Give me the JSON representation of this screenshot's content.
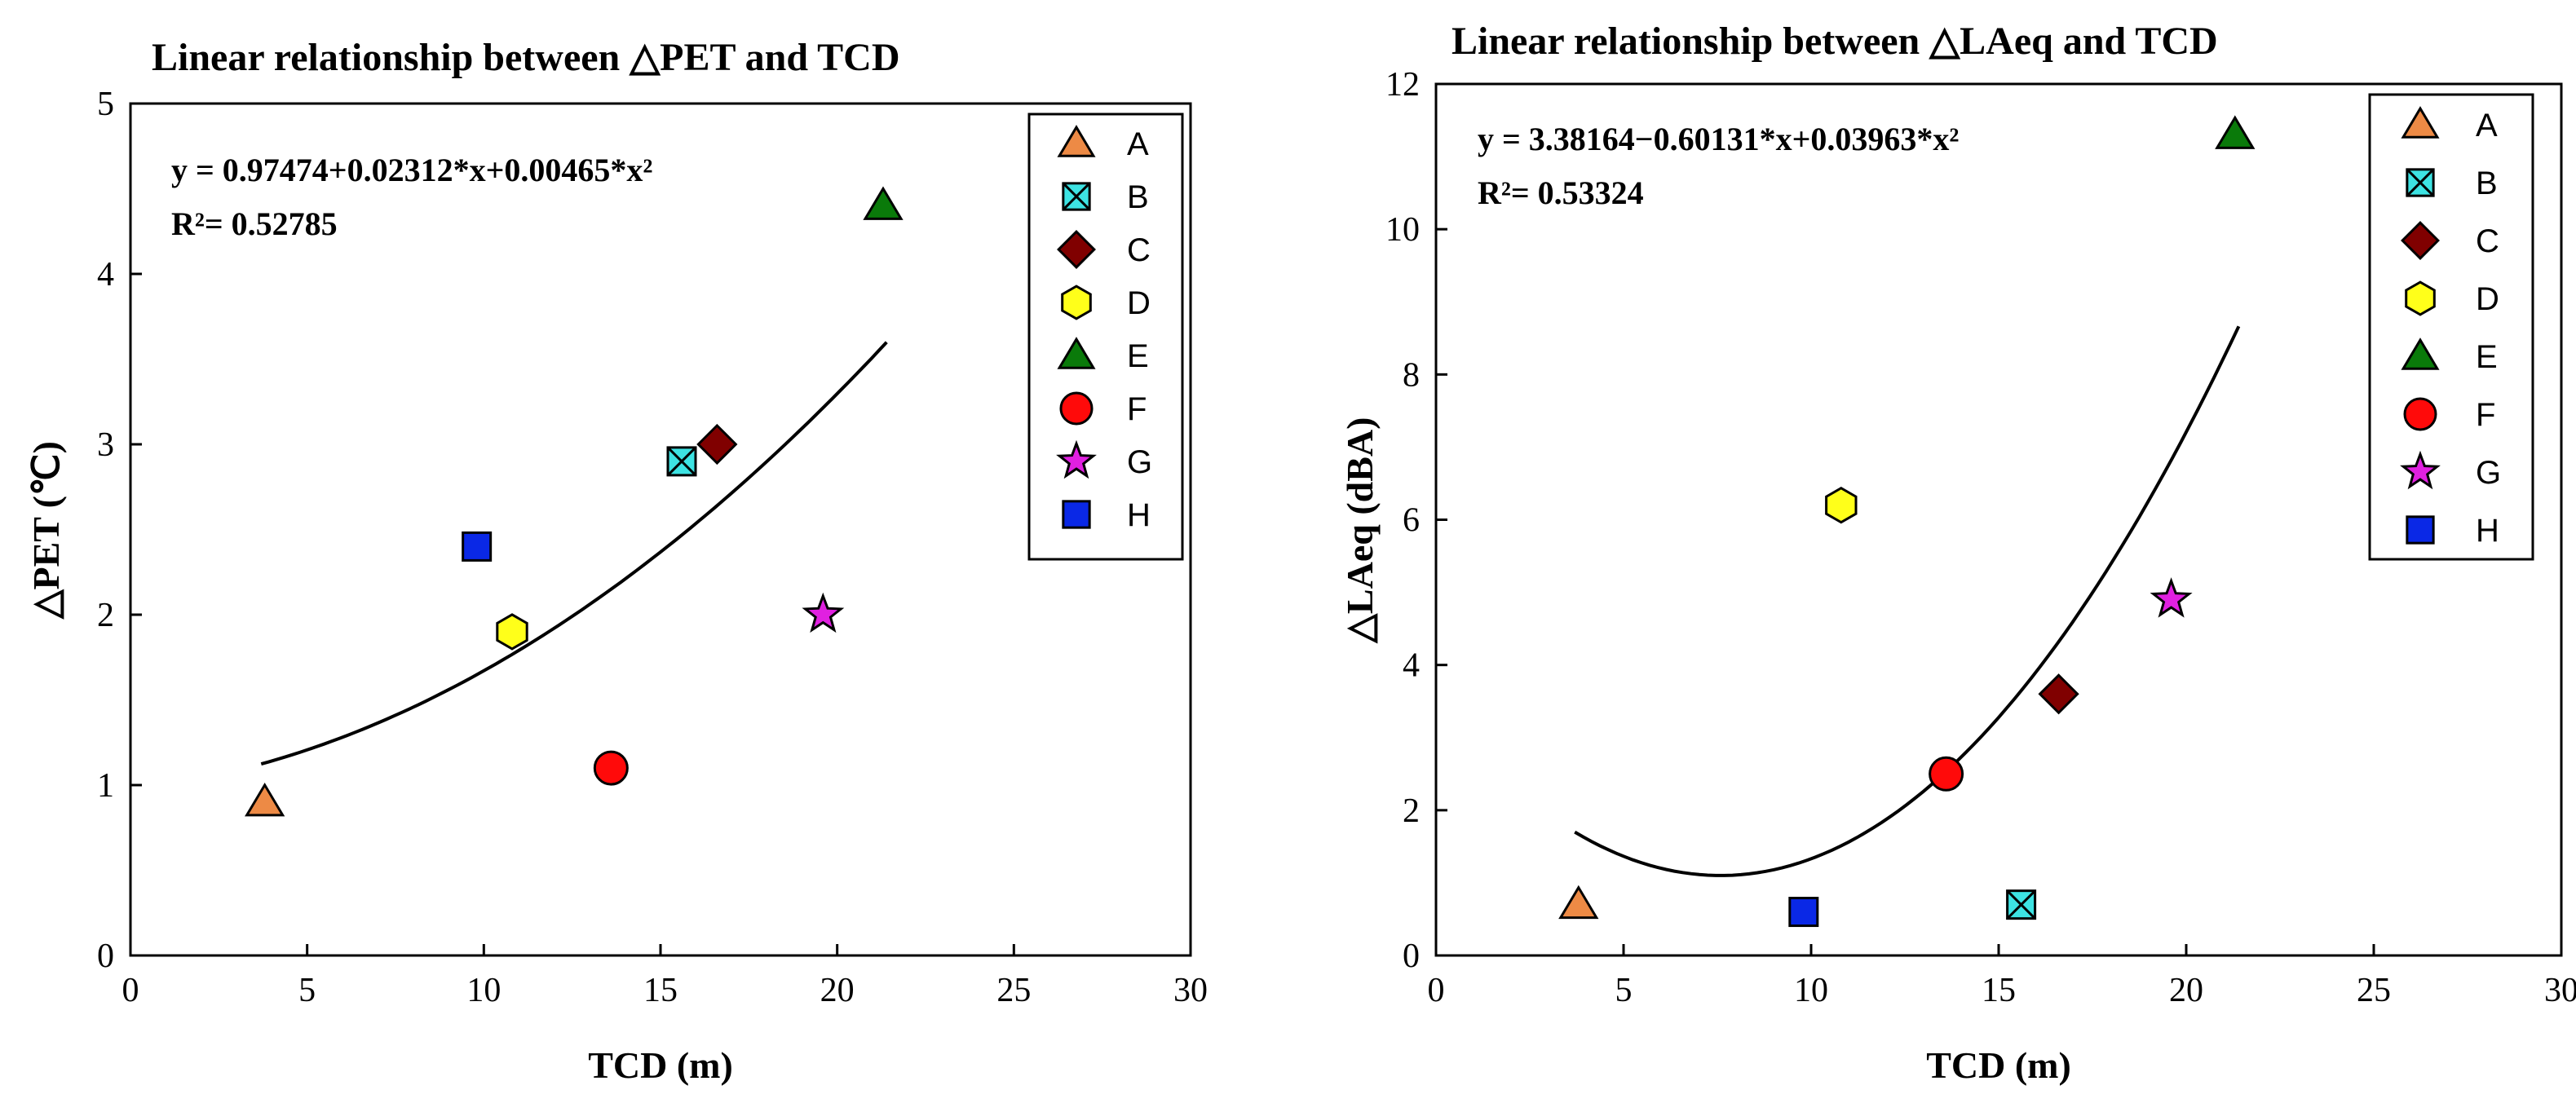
{
  "chart_data": [
    {
      "type": "scatter",
      "title": "Linear relationship between △PET and TCD",
      "xlabel": "TCD (m)",
      "ylabel": "△PET (℃)",
      "xlim": [
        0,
        30
      ],
      "ylim": [
        0,
        5
      ],
      "xticks": [
        "0",
        "5",
        "10",
        "15",
        "20",
        "25",
        "30"
      ],
      "yticks": [
        "0",
        "1",
        "2",
        "3",
        "4",
        "5"
      ],
      "equation": "y = 0.97474+0.02312*x+0.00465*x²",
      "r2": "R²= 0.52785",
      "fit": {
        "a": 0.97474,
        "b": 0.02312,
        "c": 0.00465,
        "x_range": [
          3.7,
          21.4
        ]
      },
      "legend_position": "top-right",
      "series": [
        {
          "name": "A",
          "x": 3.8,
          "y": 0.9,
          "marker": "triangle",
          "color": "#ED8A45"
        },
        {
          "name": "B",
          "x": 15.6,
          "y": 2.9,
          "marker": "square-x",
          "color": "#3DE3E3"
        },
        {
          "name": "C",
          "x": 16.6,
          "y": 3.0,
          "marker": "diamond",
          "color": "#800000"
        },
        {
          "name": "D",
          "x": 10.8,
          "y": 1.9,
          "marker": "hexagon",
          "color": "#FFFF1A"
        },
        {
          "name": "E",
          "x": 21.3,
          "y": 4.4,
          "marker": "triangle",
          "color": "#0A7A0A"
        },
        {
          "name": "F",
          "x": 13.6,
          "y": 1.1,
          "marker": "circle",
          "color": "#FF0A0A"
        },
        {
          "name": "G",
          "x": 19.6,
          "y": 2.0,
          "marker": "star",
          "color": "#E020E0"
        },
        {
          "name": "H",
          "x": 9.8,
          "y": 2.4,
          "marker": "square",
          "color": "#0A28E6"
        }
      ]
    },
    {
      "type": "scatter",
      "title": "Linear relationship between △LAeq and TCD",
      "xlabel": "TCD (m)",
      "ylabel": "△LAeq (dBA)",
      "xlim": [
        0,
        30
      ],
      "ylim": [
        0,
        12
      ],
      "xticks": [
        "0",
        "5",
        "10",
        "15",
        "20",
        "25",
        "30"
      ],
      "yticks": [
        "0",
        "2",
        "4",
        "6",
        "8",
        "10",
        "12"
      ],
      "equation": "y = 3.38164−0.60131*x+0.03963*x²",
      "r2": "R²= 0.53324",
      "fit": {
        "a": 3.38164,
        "b": -0.60131,
        "c": 0.03963,
        "x_range": [
          3.7,
          21.4
        ]
      },
      "legend_position": "top-right",
      "series": [
        {
          "name": "A",
          "x": 3.8,
          "y": 0.7,
          "marker": "triangle",
          "color": "#ED8A45"
        },
        {
          "name": "B",
          "x": 15.6,
          "y": 0.7,
          "marker": "square-x",
          "color": "#3DE3E3"
        },
        {
          "name": "C",
          "x": 16.6,
          "y": 3.6,
          "marker": "diamond",
          "color": "#800000"
        },
        {
          "name": "D",
          "x": 10.8,
          "y": 6.2,
          "marker": "hexagon",
          "color": "#FFFF1A"
        },
        {
          "name": "E",
          "x": 21.3,
          "y": 11.3,
          "marker": "triangle",
          "color": "#0A7A0A"
        },
        {
          "name": "F",
          "x": 13.6,
          "y": 2.5,
          "marker": "circle",
          "color": "#FF0A0A"
        },
        {
          "name": "G",
          "x": 19.6,
          "y": 4.9,
          "marker": "star",
          "color": "#E020E0"
        },
        {
          "name": "H",
          "x": 9.8,
          "y": 0.6,
          "marker": "square",
          "color": "#0A28E6"
        }
      ]
    }
  ]
}
